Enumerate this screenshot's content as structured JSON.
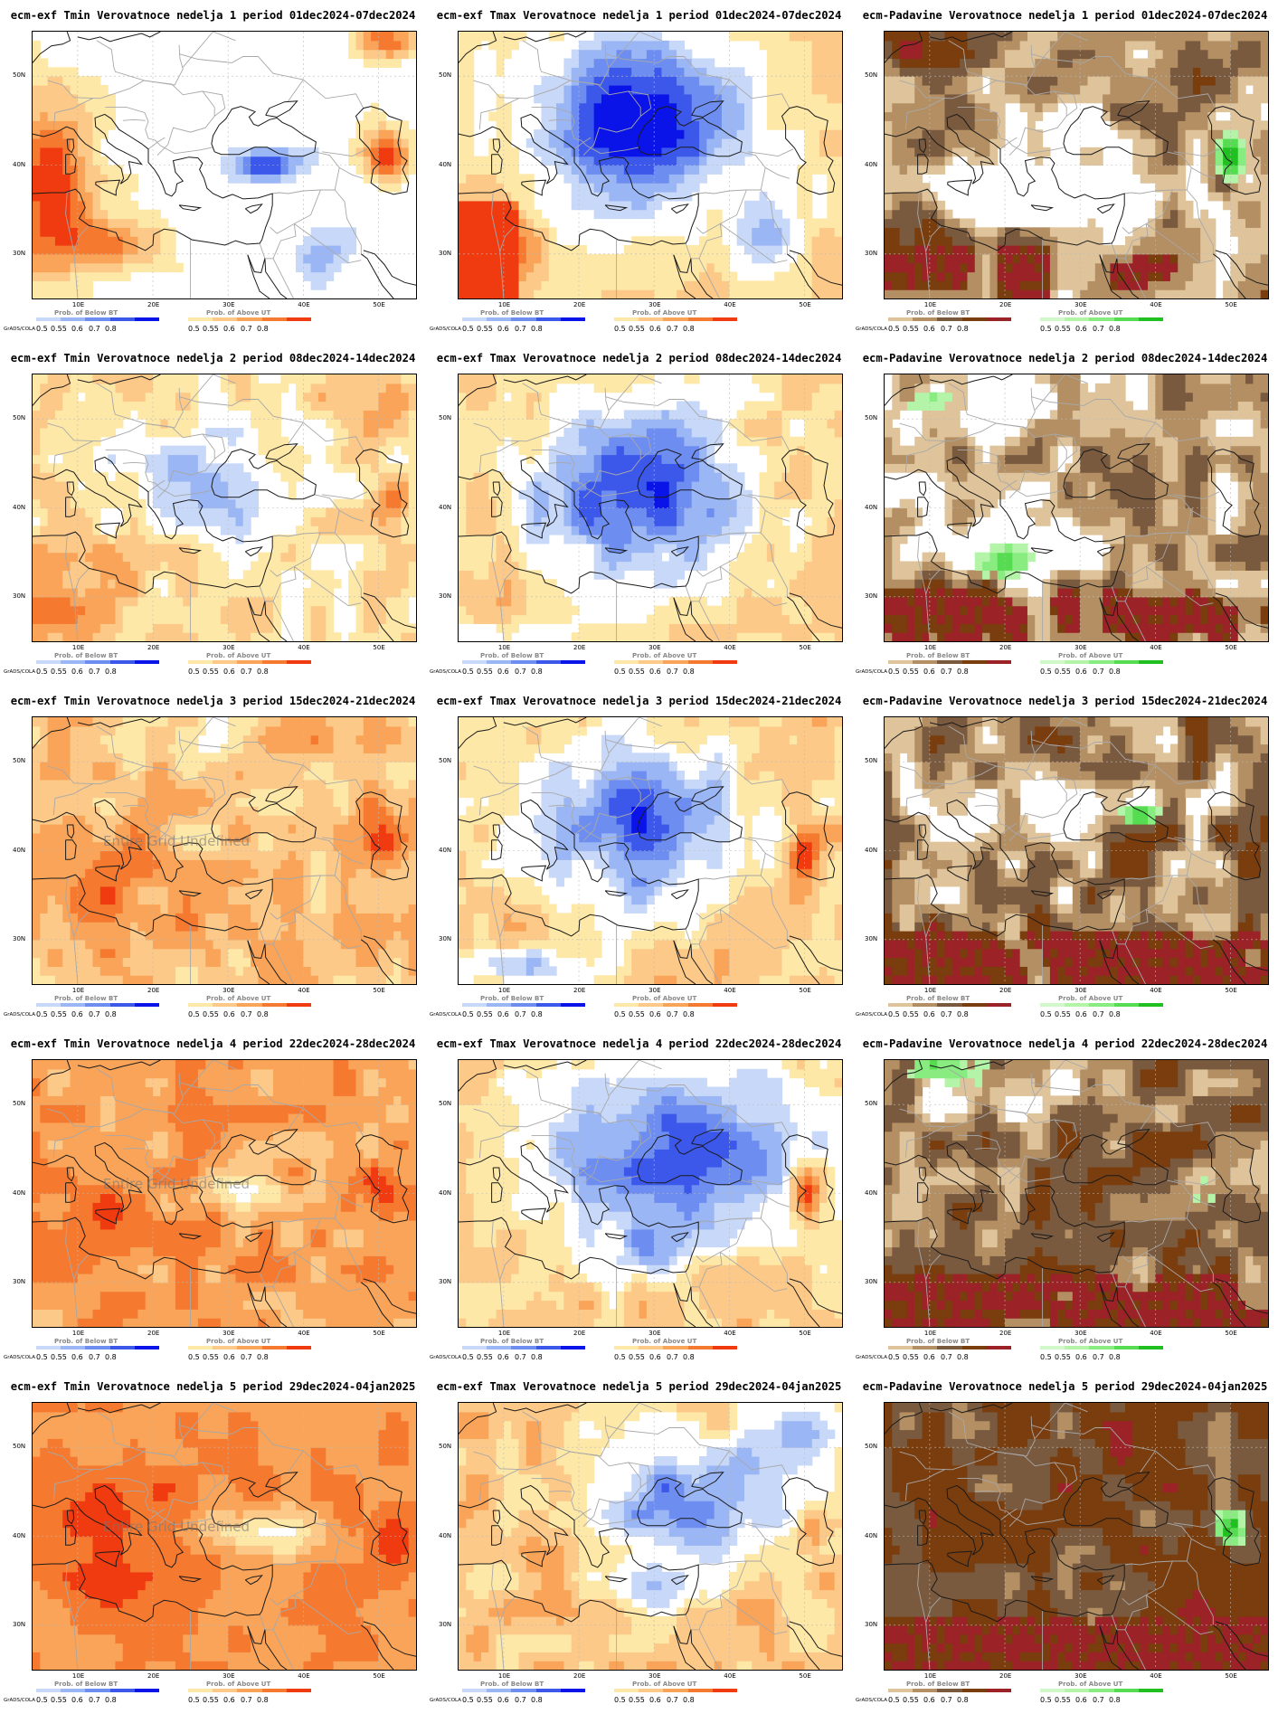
{
  "common": {
    "lat_labels": [
      "50N",
      "40N",
      "30N"
    ],
    "lon_labels": [
      "10E",
      "20E",
      "30E",
      "40E",
      "50E"
    ],
    "grads_credit": "GrADS/COLA",
    "legend_below_title": "Prob. of Below BT",
    "legend_above_title": "Prob. of Above UT",
    "legend_ticks": [
      "0.5",
      "0.55",
      "0.6",
      "0.7",
      "0.8"
    ],
    "overlay_text": "Entire Grid Undefined"
  },
  "colors": {
    "blue": [
      "#c8d8f8",
      "#9bb6f4",
      "#6d8ef0",
      "#3c58ea",
      "#0a14e8"
    ],
    "orange": [
      "#fde8a8",
      "#fcc988",
      "#f9a458",
      "#f57a30",
      "#f03a10"
    ],
    "brown": [
      "#dfc49b",
      "#b38f63",
      "#7a5a3f",
      "#7a3d0e",
      "#9b2226"
    ],
    "green": [
      "#d0f8c8",
      "#b4f4a8",
      "#88ec80",
      "#56dc50",
      "#20c020"
    ],
    "coast": "#1a1a1a",
    "border": "#a8a8a8",
    "grid": "#bbbbbb"
  },
  "panels": [
    {
      "title": "ecm-exf Tmin Verovatnoce nedelja 1 period 01dec2024-07dec2024",
      "kind": "tmin",
      "week": 1,
      "overlay": false
    },
    {
      "title": "ecm-exf Tmax Verovatnoce nedelja 1 period 01dec2024-07dec2024",
      "kind": "tmax",
      "week": 1,
      "overlay": false
    },
    {
      "title": "ecm-Padavine Verovatnoce nedelja 1 period 01dec2024-07dec2024",
      "kind": "prec",
      "week": 1,
      "overlay": false
    },
    {
      "title": "ecm-exf Tmin Verovatnoce nedelja 2 period 08dec2024-14dec2024",
      "kind": "tmin",
      "week": 2,
      "overlay": false
    },
    {
      "title": "ecm-exf Tmax Verovatnoce nedelja 2 period 08dec2024-14dec2024",
      "kind": "tmax",
      "week": 2,
      "overlay": false
    },
    {
      "title": "ecm-Padavine Verovatnoce nedelja 2 period 08dec2024-14dec2024",
      "kind": "prec",
      "week": 2,
      "overlay": false
    },
    {
      "title": "ecm-exf Tmin Verovatnoce nedelja 3 period 15dec2024-21dec2024",
      "kind": "tmin",
      "week": 3,
      "overlay": true
    },
    {
      "title": "ecm-exf Tmax Verovatnoce nedelja 3 period 15dec2024-21dec2024",
      "kind": "tmax",
      "week": 3,
      "overlay": false
    },
    {
      "title": "ecm-Padavine Verovatnoce nedelja 3 period 15dec2024-21dec2024",
      "kind": "prec",
      "week": 3,
      "overlay": false
    },
    {
      "title": "ecm-exf Tmin Verovatnoce nedelja 4 period 22dec2024-28dec2024",
      "kind": "tmin",
      "week": 4,
      "overlay": true
    },
    {
      "title": "ecm-exf Tmax Verovatnoce nedelja 4 period 22dec2024-28dec2024",
      "kind": "tmax",
      "week": 4,
      "overlay": false
    },
    {
      "title": "ecm-Padavine Verovatnoce nedelja 4 period 22dec2024-28dec2024",
      "kind": "prec",
      "week": 4,
      "overlay": false
    },
    {
      "title": "ecm-exf Tmin Verovatnoce nedelja 5 period 29dec2024-04jan2025",
      "kind": "tmin",
      "week": 5,
      "overlay": true
    },
    {
      "title": "ecm-exf Tmax Verovatnoce nedelja 5 period 29dec2024-04jan2025",
      "kind": "tmax",
      "week": 5,
      "overlay": false
    },
    {
      "title": "ecm-Padavine Verovatnoce nedelja 5 period 29dec2024-04jan2025",
      "kind": "prec",
      "week": 5,
      "overlay": false
    }
  ]
}
